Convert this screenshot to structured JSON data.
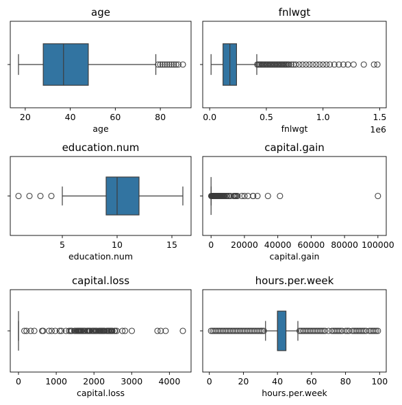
{
  "style": {
    "box_color": "#3274a1",
    "line_color": "#3d3d3d"
  },
  "chart_data": [
    {
      "type": "box",
      "title": "age",
      "xlabel": "age",
      "xlim": [
        13.35,
        93.65
      ],
      "ticks": [
        20,
        40,
        60,
        80
      ],
      "tick_labels": [
        "20",
        "40",
        "60",
        "80"
      ],
      "offset_label": "",
      "box": {
        "whisker_low": 17,
        "q1": 28,
        "median": 37,
        "q3": 48,
        "whisker_high": 78
      },
      "outliers": [
        79,
        80,
        81,
        82,
        83,
        84,
        85,
        86,
        87,
        88,
        90
      ]
    },
    {
      "type": "box",
      "title": "fnlwgt",
      "xlabel": "fnlwgt",
      "xlim": [
        -61400,
        1558000
      ],
      "ticks": [
        0,
        500000,
        1000000,
        1500000
      ],
      "tick_labels": [
        "0.0",
        "0.5",
        "1.0",
        "1.5"
      ],
      "offset_label": "1e6",
      "box": {
        "whisker_low": 12285,
        "q1": 117800,
        "median": 178350,
        "q3": 237050,
        "whisker_high": 415700
      },
      "outliers": [
        420000,
        430000,
        440000,
        450000,
        460000,
        470000,
        480000,
        490000,
        500000,
        510000,
        520000,
        530000,
        540000,
        550000,
        560000,
        570000,
        580000,
        590000,
        600000,
        610000,
        620000,
        630000,
        640000,
        650000,
        660000,
        670000,
        680000,
        690000,
        700000,
        720000,
        740000,
        760000,
        790000,
        820000,
        850000,
        880000,
        910000,
        940000,
        970000,
        1000000,
        1030000,
        1060000,
        1100000,
        1140000,
        1180000,
        1220000,
        1270000,
        1360000,
        1450000,
        1480000
      ]
    },
    {
      "type": "box",
      "title": "education.num",
      "xlabel": "education.num",
      "xlim": [
        0.25,
        16.75
      ],
      "ticks": [
        5,
        10,
        15
      ],
      "tick_labels": [
        "5",
        "10",
        "15"
      ],
      "offset_label": "",
      "box": {
        "whisker_low": 5,
        "q1": 9,
        "median": 10,
        "q3": 12,
        "whisker_high": 16
      },
      "outliers": [
        1,
        2,
        3,
        4
      ]
    },
    {
      "type": "box",
      "title": "capital.gain",
      "xlabel": "capital.gain",
      "xlim": [
        -5000,
        105000
      ],
      "ticks": [
        0,
        20000,
        40000,
        60000,
        80000,
        100000
      ],
      "tick_labels": [
        "0",
        "20000",
        "40000",
        "60000",
        "80000",
        "100000"
      ],
      "offset_label": "",
      "box": {
        "whisker_low": 0,
        "q1": 0,
        "median": 0,
        "q3": 0,
        "whisker_high": 0
      },
      "outliers": [
        114,
        401,
        594,
        914,
        991,
        1055,
        1086,
        1111,
        1151,
        1173,
        1409,
        1424,
        1455,
        1471,
        1506,
        1639,
        1797,
        1831,
        1848,
        2009,
        2036,
        2050,
        2062,
        2105,
        2174,
        2176,
        2202,
        2228,
        2290,
        2329,
        2346,
        2354,
        2387,
        2407,
        2414,
        2463,
        2538,
        2580,
        2597,
        2635,
        2653,
        2829,
        2885,
        2907,
        2936,
        2961,
        2964,
        2977,
        2993,
        3103,
        3137,
        3273,
        3325,
        3411,
        3418,
        3432,
        3456,
        3464,
        3471,
        3674,
        3781,
        3818,
        3887,
        3908,
        3942,
        4064,
        4101,
        4386,
        4416,
        4508,
        4650,
        4687,
        4787,
        4865,
        4931,
        4934,
        5013,
        5060,
        5178,
        5455,
        5556,
        5721,
        6097,
        6360,
        6418,
        6497,
        6514,
        6723,
        6767,
        6849,
        7298,
        7430,
        7443,
        7688,
        7896,
        7978,
        8614,
        9386,
        9562,
        10520,
        10566,
        10605,
        11678,
        13550,
        14084,
        14344,
        15020,
        15024,
        15831,
        18481,
        20051,
        22040,
        25124,
        25236,
        27828,
        34095,
        41310,
        99999
      ]
    },
    {
      "type": "box",
      "title": "capital.loss",
      "xlabel": "capital.loss",
      "xlim": [
        -218,
        4574
      ],
      "ticks": [
        0,
        1000,
        2000,
        3000,
        4000
      ],
      "tick_labels": [
        "0",
        "1000",
        "2000",
        "3000",
        "4000"
      ],
      "offset_label": "",
      "box": {
        "whisker_low": 0,
        "q1": 0,
        "median": 0,
        "q3": 0,
        "whisker_high": 0
      },
      "outliers": [
        155,
        213,
        323,
        419,
        625,
        653,
        810,
        880,
        974,
        1092,
        1138,
        1258,
        1340,
        1380,
        1408,
        1411,
        1485,
        1504,
        1539,
        1564,
        1573,
        1579,
        1590,
        1594,
        1602,
        1617,
        1628,
        1648,
        1651,
        1668,
        1669,
        1672,
        1719,
        1721,
        1726,
        1735,
        1740,
        1741,
        1755,
        1762,
        1816,
        1825,
        1844,
        1848,
        1876,
        1887,
        1902,
        1944,
        1974,
        1977,
        1980,
        2001,
        2002,
        2042,
        2051,
        2057,
        2080,
        2129,
        2149,
        2163,
        2174,
        2179,
        2201,
        2205,
        2206,
        2231,
        2238,
        2246,
        2258,
        2267,
        2282,
        2339,
        2352,
        2377,
        2392,
        2415,
        2444,
        2457,
        2467,
        2472,
        2489,
        2547,
        2559,
        2603,
        2754,
        2824,
        3004,
        3683,
        3770,
        3900,
        4356
      ]
    },
    {
      "type": "box",
      "title": "hours.per.week",
      "xlabel": "hours.per.week",
      "xlim": [
        -3.9,
        103.9
      ],
      "ticks": [
        0,
        20,
        40,
        60,
        80,
        100
      ],
      "tick_labels": [
        "0",
        "20",
        "40",
        "60",
        "80",
        "100"
      ],
      "offset_label": "",
      "box": {
        "whisker_low": 33,
        "q1": 40,
        "median": 40,
        "q3": 45,
        "whisker_high": 52
      },
      "outliers": [
        1,
        2,
        3,
        4,
        5,
        6,
        7,
        8,
        9,
        10,
        11,
        12,
        13,
        14,
        15,
        16,
        17,
        18,
        19,
        20,
        21,
        22,
        23,
        24,
        25,
        26,
        27,
        28,
        29,
        30,
        31,
        32,
        53,
        54,
        55,
        56,
        57,
        58,
        59,
        60,
        61,
        62,
        63,
        64,
        65,
        66,
        67,
        68,
        70,
        72,
        73,
        74,
        75,
        76,
        77,
        78,
        80,
        81,
        82,
        84,
        85,
        86,
        87,
        88,
        89,
        90,
        91,
        92,
        94,
        95,
        96,
        97,
        98,
        99
      ]
    }
  ]
}
